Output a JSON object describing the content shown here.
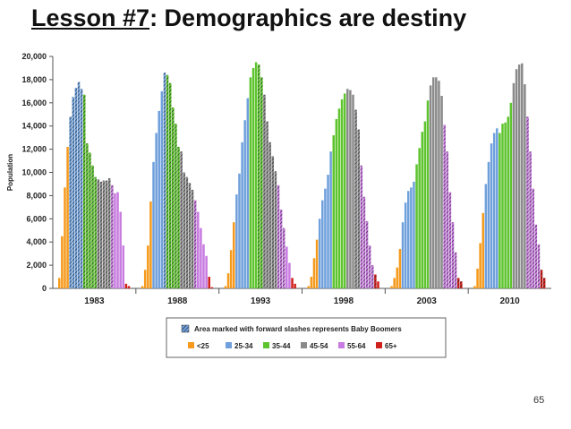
{
  "slide": {
    "title_part1": "Lesson #7",
    "title_part2": ": Demographics are destiny",
    "page_number": "65"
  },
  "colors": {
    "<25": "#f59a1c",
    "25-34": "#6fa0dc",
    "35-44": "#5ec42e",
    "45-54": "#8a8a8a",
    "55-64": "#c87be0",
    "65+": "#d0201c"
  },
  "chart_data": {
    "type": "bar",
    "ylabel": "Population",
    "ylim": [
      0,
      20000
    ],
    "yticks": [
      "0",
      "2,000",
      "4,000",
      "6,000",
      "8,000",
      "10,000",
      "12,000",
      "14,000",
      "16,000",
      "18,000",
      "20,000"
    ],
    "groups": [
      {
        "label": "1983",
        "values": [
          900,
          4500,
          8700,
          12200,
          14800,
          16500,
          17300,
          17800,
          17200,
          16700,
          12500,
          11700,
          10600,
          9600,
          9400,
          9200,
          9300,
          9300,
          9500,
          8900,
          8200,
          8300,
          6600,
          3700,
          400,
          200
        ],
        "boomer": [
          0,
          0,
          0,
          0,
          1,
          1,
          1,
          1,
          1,
          1,
          1,
          1,
          1,
          1,
          1,
          1,
          1,
          1,
          1,
          1,
          0,
          0,
          0,
          0,
          0,
          0
        ]
      },
      {
        "label": "1988",
        "values": [
          200,
          1600,
          3700,
          7500,
          10900,
          13400,
          15300,
          17000,
          18600,
          18400,
          17700,
          15600,
          14200,
          12200,
          11800,
          10000,
          9600,
          9100,
          8500,
          7600,
          6600,
          5200,
          3800,
          2800,
          1000,
          100
        ],
        "boomer": [
          0,
          0,
          0,
          0,
          0,
          0,
          0,
          0,
          1,
          1,
          1,
          1,
          1,
          1,
          1,
          1,
          1,
          1,
          1,
          1,
          0,
          0,
          0,
          0,
          0,
          0
        ]
      },
      {
        "label": "1993",
        "values": [
          200,
          1300,
          3300,
          5700,
          8100,
          9900,
          12600,
          14500,
          16400,
          18200,
          19000,
          19500,
          19300,
          18200,
          16700,
          14400,
          12600,
          11400,
          10100,
          8900,
          6800,
          5200,
          3600,
          2200,
          900,
          400
        ],
        "boomer": [
          0,
          0,
          0,
          0,
          0,
          0,
          0,
          0,
          0,
          0,
          0,
          0,
          1,
          1,
          1,
          1,
          1,
          1,
          1,
          1,
          1,
          1,
          0,
          0,
          0,
          0
        ]
      },
      {
        "label": "1998",
        "values": [
          200,
          1000,
          2600,
          4200,
          6000,
          7600,
          8600,
          9800,
          11800,
          13200,
          14600,
          15500,
          16300,
          16800,
          17200,
          17100,
          16700,
          15400,
          13700,
          10600,
          7900,
          5800,
          3700,
          2000,
          1200,
          600
        ],
        "boomer": [
          0,
          0,
          0,
          0,
          0,
          0,
          0,
          0,
          0,
          0,
          0,
          0,
          0,
          0,
          0,
          0,
          0,
          1,
          1,
          1,
          1,
          1,
          1,
          1,
          1,
          0
        ]
      },
      {
        "label": "2003",
        "values": [
          200,
          900,
          1800,
          3400,
          5700,
          7400,
          8400,
          8700,
          9200,
          10700,
          12100,
          13500,
          14400,
          16200,
          17500,
          18200,
          18200,
          17900,
          16600,
          14100,
          11800,
          8300,
          5700,
          3100,
          900,
          600
        ],
        "boomer": [
          0,
          0,
          0,
          0,
          0,
          0,
          0,
          0,
          0,
          0,
          0,
          0,
          0,
          0,
          0,
          0,
          0,
          0,
          0,
          1,
          1,
          1,
          1,
          1,
          1,
          1
        ]
      },
      {
        "label": "2010",
        "values": [
          200,
          1700,
          3900,
          6500,
          9000,
          10900,
          12500,
          13400,
          13800,
          13400,
          14200,
          14300,
          14800,
          16000,
          17700,
          18900,
          19300,
          19400,
          17600,
          14800,
          11800,
          8600,
          5500,
          3800,
          1600,
          900
        ],
        "boomer": [
          0,
          0,
          0,
          0,
          0,
          0,
          0,
          0,
          0,
          0,
          0,
          0,
          0,
          0,
          0,
          0,
          0,
          0,
          0,
          1,
          1,
          1,
          1,
          1,
          1,
          1
        ]
      }
    ],
    "bar_colors": [
      "<25",
      "<25",
      "<25",
      "<25",
      "25-34",
      "25-34",
      "25-34",
      "25-34",
      "25-34",
      "35-44",
      "35-44",
      "35-44",
      "35-44",
      "35-44",
      "45-54",
      "45-54",
      "45-54",
      "45-54",
      "45-54",
      "55-64",
      "55-64",
      "55-64",
      "55-64",
      "55-64",
      "65+",
      "65+"
    ],
    "legend": {
      "placement": "bottom",
      "boomer_note": "Area marked with forward slashes represents Baby Boomers",
      "entries": [
        "<25",
        "25-34",
        "35-44",
        "45-54",
        "55-64",
        "65+"
      ]
    },
    "grid": false
  }
}
